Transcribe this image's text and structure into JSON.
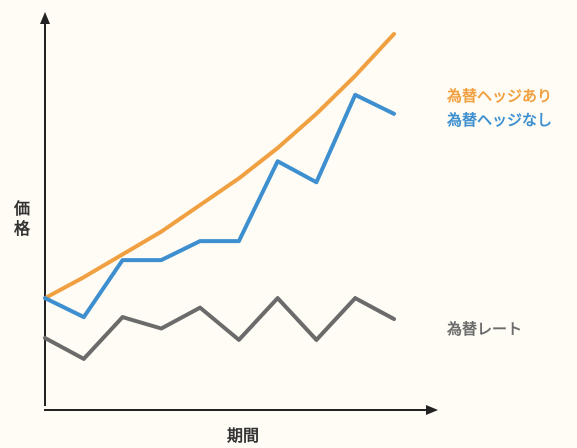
{
  "chart_data": {
    "type": "line",
    "title": "",
    "xlabel": "期間",
    "ylabel": "価格",
    "x": [
      0,
      1,
      2,
      3,
      4,
      5,
      6,
      7,
      8,
      9
    ],
    "xlim": [
      0,
      9.8
    ],
    "ylim": [
      0,
      100
    ],
    "grid": false,
    "series": [
      {
        "name": "為替ヘッジあり",
        "color": "#f0a040",
        "values": [
          25.5,
          31,
          37,
          43,
          50,
          57,
          65,
          74,
          84,
          95
        ]
      },
      {
        "name": "為替ヘッジなし",
        "color": "#3d8fcf",
        "values": [
          25.5,
          20.5,
          35.5,
          35.5,
          40.5,
          40.5,
          61.5,
          56,
          79,
          74
        ]
      },
      {
        "name": "為替レート",
        "color": "#6b6b6b",
        "values": [
          15,
          9.5,
          20.5,
          17.5,
          23,
          14.5,
          25.5,
          14.5,
          25.5,
          20
        ]
      }
    ]
  }
}
